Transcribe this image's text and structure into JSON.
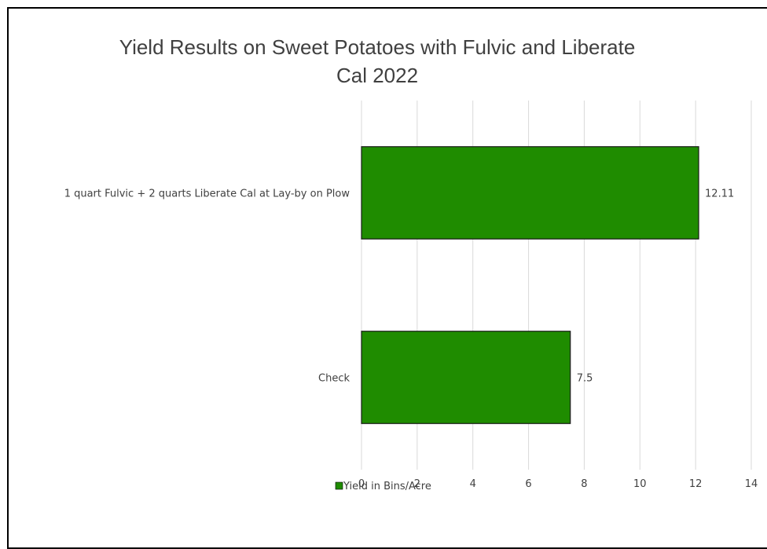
{
  "chart_data": {
    "type": "bar",
    "orientation": "horizontal",
    "title": "Yield Results on Sweet Potatoes with Fulvic and Liberate Cal 2022",
    "title_lines": [
      "Yield Results on Sweet Potatoes with Fulvic and Liberate",
      "Cal 2022"
    ],
    "categories": [
      "1 quart Fulvic + 2 quarts Liberate Cal at Lay-by on Plow",
      "Check"
    ],
    "series": [
      {
        "name": "Yield in Bins/Acre",
        "values": [
          12.11,
          7.5
        ],
        "color": "#1f8c00"
      }
    ],
    "data_labels": [
      "12.11",
      "7.5"
    ],
    "xlim": [
      0,
      14
    ],
    "x_ticks": [
      0,
      2,
      4,
      6,
      8,
      10,
      12,
      14
    ],
    "x_tick_labels": [
      "0",
      "2",
      "4",
      "6",
      "8",
      "10",
      "12",
      "14"
    ],
    "grid": true,
    "legend_position": "bottom",
    "xlabel": "",
    "ylabel": ""
  }
}
